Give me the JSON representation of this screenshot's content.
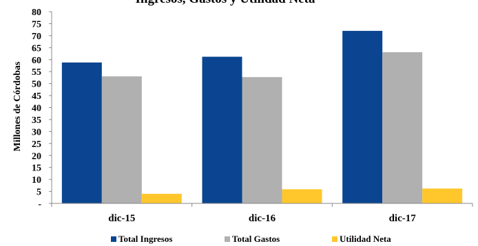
{
  "chart_data": {
    "type": "bar",
    "title": "Ingresos, Gastos y Utilidad Neta",
    "xlabel": "",
    "ylabel": "Millones de Córdobas",
    "categories": [
      "dic-15",
      "dic-16",
      "dic-17"
    ],
    "ylim": [
      0,
      80
    ],
    "y_ticks": [
      "-",
      "5",
      "10",
      "15",
      "20",
      "25",
      "30",
      "35",
      "40",
      "45",
      "50",
      "55",
      "60",
      "65",
      "70",
      "75",
      "80"
    ],
    "grid": false,
    "legend_position": "bottom",
    "series": [
      {
        "name": "Total Ingresos",
        "color": "#0B4591",
        "values": [
          58.8,
          61.2,
          72.0
        ]
      },
      {
        "name": "Total Gastos",
        "color": "#B0B0B0",
        "values": [
          53.0,
          52.7,
          63.1
        ]
      },
      {
        "name": "Utilidad Neta",
        "color": "#FFC72C",
        "values": [
          4.0,
          5.9,
          6.2
        ]
      }
    ]
  }
}
